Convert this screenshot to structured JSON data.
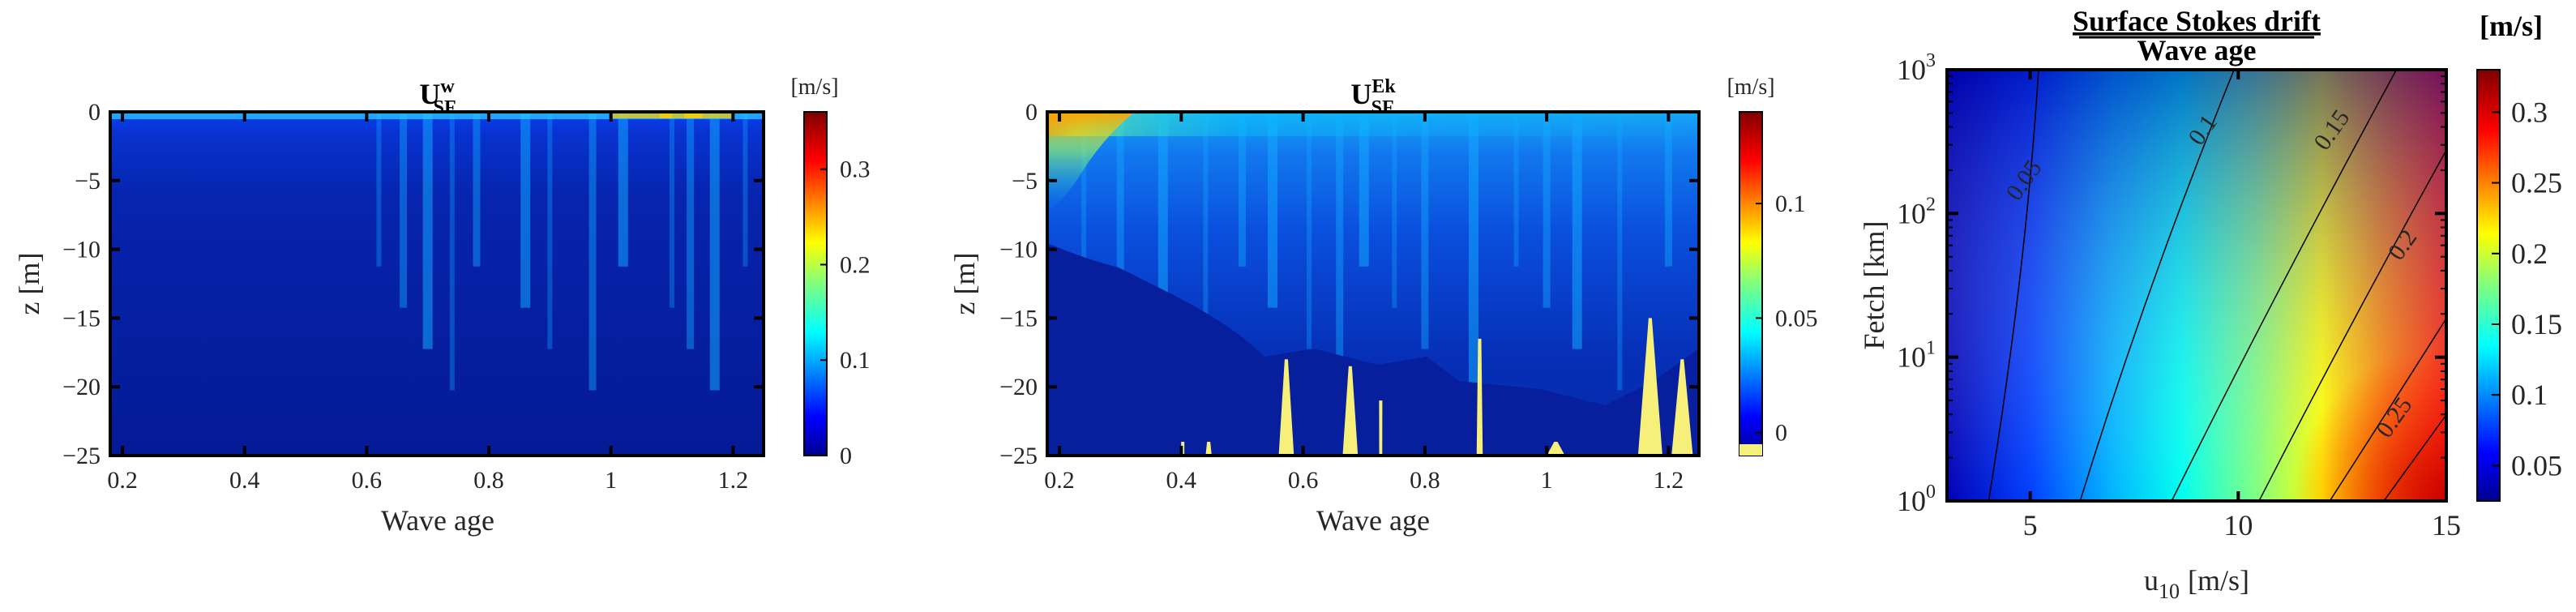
{
  "chart_data": [
    {
      "type": "heatmap",
      "title_main": "U",
      "title_sup": "w",
      "title_sub": "SF",
      "xlabel": "Wave age",
      "ylabel": "z [m]",
      "xlim": [
        0.18,
        1.25
      ],
      "ylim": [
        -25,
        0
      ],
      "xticks": [
        "0.2",
        "0.4",
        "0.6",
        "0.8",
        "1",
        "1.2"
      ],
      "yticks": [
        "0",
        "−5",
        "−10",
        "−15",
        "−20",
        "−25"
      ],
      "colorbar": {
        "label": "[m/s]",
        "range": [
          0,
          0.36
        ],
        "ticks": [
          "0",
          "0.1",
          "0.2",
          "0.3"
        ]
      },
      "stripes": [
        0.62,
        0.66,
        0.7,
        0.74,
        0.78,
        0.86,
        0.9,
        0.97,
        1.02,
        1.1,
        1.13,
        1.17,
        1.22
      ]
    },
    {
      "type": "heatmap",
      "title_main": "U",
      "title_sup": "Ek",
      "title_sub": "SF",
      "xlabel": "Wave age",
      "ylabel": "z [m]",
      "xlim": [
        0.18,
        1.25
      ],
      "ylim": [
        -25,
        0
      ],
      "xticks": [
        "0.2",
        "0.4",
        "0.6",
        "0.8",
        "1",
        "1.2"
      ],
      "yticks": [
        "0",
        "−5",
        "−10",
        "−15",
        "−20",
        "−25"
      ],
      "colorbar": {
        "label": "[m/s]",
        "range": [
          -0.01,
          0.14
        ],
        "ticks": [
          "0",
          "0.05",
          "0.1"
        ]
      },
      "negative_region_color": "#f6f07a",
      "stripes": [
        0.24,
        0.3,
        0.37,
        0.44,
        0.5,
        0.55,
        0.61,
        0.66,
        0.7,
        0.75,
        0.8,
        0.88,
        0.95,
        1.0,
        1.05,
        1.12,
        1.2
      ]
    },
    {
      "type": "contour",
      "title": "Surface Stokes drift",
      "title_denominator": "Wave age",
      "xlabel_main": "u",
      "xlabel_sub": "10",
      "xlabel_unit": "[m/s]",
      "ylabel_main": "Fetch [km]",
      "xlim": [
        3,
        15
      ],
      "ylim_log10": [
        0,
        3
      ],
      "xticks": [
        "5",
        "10",
        "15"
      ],
      "yticks_base": "10",
      "yticks_exp": [
        "0",
        "1",
        "2",
        "3"
      ],
      "contour_levels": [
        "0.05",
        "0.1",
        "0.15",
        "0.2",
        "0.25"
      ],
      "colorbar": {
        "label": "[m/s]",
        "range": [
          0.025,
          0.33
        ],
        "ticks": [
          "0.05",
          "0.1",
          "0.15",
          "0.2",
          "0.25",
          "0.3"
        ]
      }
    }
  ]
}
